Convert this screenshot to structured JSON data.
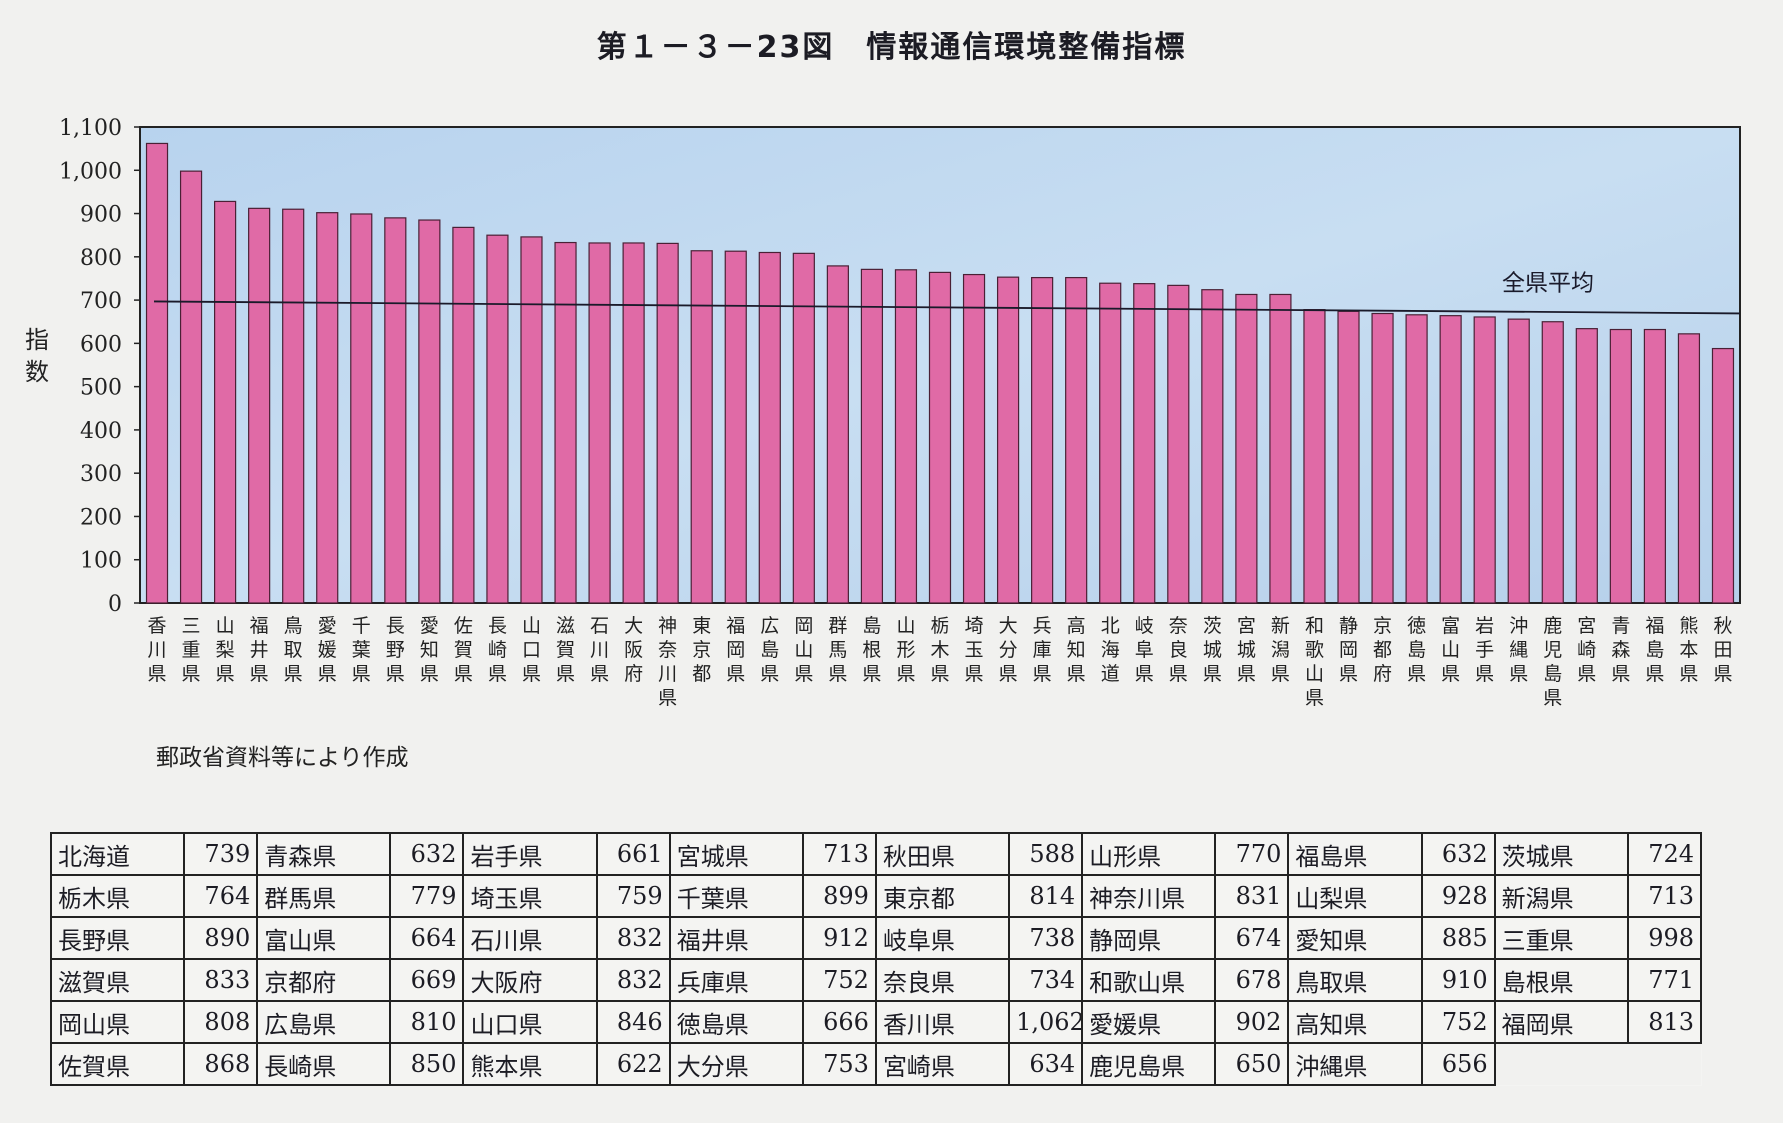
{
  "title": "第１－３－23図　情報通信環境整備指標",
  "source_note": "郵政省資料等により作成",
  "colors": {
    "bar": "#e06aa6",
    "bar_stroke": "#4a2035",
    "plot_background": "#bcd6ee",
    "axis": "#222222"
  },
  "chart_data": {
    "type": "bar",
    "ylabel": "指数",
    "ylim": [
      0,
      1100
    ],
    "yticks": [
      0,
      100,
      200,
      300,
      400,
      500,
      600,
      700,
      800,
      900,
      1000,
      1100
    ],
    "ytick_labels": [
      "0",
      "100",
      "200",
      "300",
      "400",
      "500",
      "600",
      "700",
      "800",
      "900",
      "1,000",
      "1,100"
    ],
    "categories": [
      "香川県",
      "三重県",
      "山梨県",
      "福井県",
      "鳥取県",
      "愛媛県",
      "千葉県",
      "長野県",
      "愛知県",
      "佐賀県",
      "長崎県",
      "山口県",
      "滋賀県",
      "石川県",
      "大阪府",
      "神奈川県",
      "東京都",
      "福岡県",
      "広島県",
      "岡山県",
      "群馬県",
      "島根県",
      "山形県",
      "栃木県",
      "埼玉県",
      "大分県",
      "兵庫県",
      "高知県",
      "北海道",
      "岐阜県",
      "奈良県",
      "茨城県",
      "宮城県",
      "新潟県",
      "和歌山県",
      "静岡県",
      "京都府",
      "徳島県",
      "富山県",
      "岩手県",
      "沖縄県",
      "鹿児島県",
      "宮崎県",
      "青森県",
      "福島県",
      "熊本県",
      "秋田県"
    ],
    "values": [
      1062,
      998,
      928,
      912,
      910,
      902,
      899,
      890,
      885,
      868,
      850,
      846,
      833,
      832,
      832,
      831,
      814,
      813,
      810,
      808,
      779,
      771,
      770,
      764,
      759,
      753,
      752,
      752,
      739,
      738,
      734,
      724,
      713,
      713,
      678,
      674,
      669,
      666,
      664,
      661,
      656,
      650,
      634,
      632,
      632,
      622,
      588
    ],
    "reference_line": {
      "label": "全県平均",
      "value": 690
    },
    "grid": false,
    "legend": "none"
  },
  "table": {
    "rows": [
      [
        [
          "北海道",
          "739"
        ],
        [
          "青森県",
          "632"
        ],
        [
          "岩手県",
          "661"
        ],
        [
          "宮城県",
          "713"
        ],
        [
          "秋田県",
          "588"
        ],
        [
          "山形県",
          "770"
        ],
        [
          "福島県",
          "632"
        ],
        [
          "茨城県",
          "724"
        ]
      ],
      [
        [
          "栃木県",
          "764"
        ],
        [
          "群馬県",
          "779"
        ],
        [
          "埼玉県",
          "759"
        ],
        [
          "千葉県",
          "899"
        ],
        [
          "東京都",
          "814"
        ],
        [
          "神奈川県",
          "831"
        ],
        [
          "山梨県",
          "928"
        ],
        [
          "新潟県",
          "713"
        ]
      ],
      [
        [
          "長野県",
          "890"
        ],
        [
          "富山県",
          "664"
        ],
        [
          "石川県",
          "832"
        ],
        [
          "福井県",
          "912"
        ],
        [
          "岐阜県",
          "738"
        ],
        [
          "静岡県",
          "674"
        ],
        [
          "愛知県",
          "885"
        ],
        [
          "三重県",
          "998"
        ]
      ],
      [
        [
          "滋賀県",
          "833"
        ],
        [
          "京都府",
          "669"
        ],
        [
          "大阪府",
          "832"
        ],
        [
          "兵庫県",
          "752"
        ],
        [
          "奈良県",
          "734"
        ],
        [
          "和歌山県",
          "678"
        ],
        [
          "鳥取県",
          "910"
        ],
        [
          "島根県",
          "771"
        ]
      ],
      [
        [
          "岡山県",
          "808"
        ],
        [
          "広島県",
          "810"
        ],
        [
          "山口県",
          "846"
        ],
        [
          "徳島県",
          "666"
        ],
        [
          "香川県",
          "1,062"
        ],
        [
          "愛媛県",
          "902"
        ],
        [
          "高知県",
          "752"
        ],
        [
          "福岡県",
          "813"
        ]
      ],
      [
        [
          "佐賀県",
          "868"
        ],
        [
          "長崎県",
          "850"
        ],
        [
          "熊本県",
          "622"
        ],
        [
          "大分県",
          "753"
        ],
        [
          "宮崎県",
          "634"
        ],
        [
          "鹿児島県",
          "650"
        ],
        [
          "沖縄県",
          "656"
        ]
      ]
    ]
  }
}
